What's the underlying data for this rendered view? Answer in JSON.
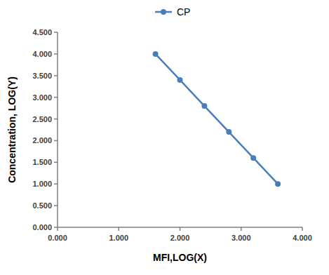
{
  "chart_data": {
    "type": "line",
    "x_label": "MFI,LOG(X)",
    "y_label": "Concentration,  LOG(Y)",
    "x": [
      1.6,
      2.0,
      2.4,
      2.8,
      3.2,
      3.6
    ],
    "series": [
      {
        "name": "CP",
        "color": "#4a7ebb",
        "marker": "circle",
        "line_style": "solid",
        "values": [
          4.0,
          3.4,
          2.8,
          2.2,
          1.6,
          1.0
        ]
      }
    ],
    "xlim": [
      0,
      4
    ],
    "xticks": [
      {
        "value": 0,
        "label": "0.000"
      },
      {
        "value": 1,
        "label": "1.000"
      },
      {
        "value": 2,
        "label": "2.000"
      },
      {
        "value": 3,
        "label": "3.000"
      },
      {
        "value": 4,
        "label": "4.000"
      }
    ],
    "ylim": [
      0,
      4.5
    ],
    "yticks": [
      {
        "value": 0,
        "label": "0.000"
      },
      {
        "value": 0.5,
        "label": "0.500"
      },
      {
        "value": 1,
        "label": "1.000"
      },
      {
        "value": 1.5,
        "label": "1.500"
      },
      {
        "value": 2,
        "label": "2.000"
      },
      {
        "value": 2.5,
        "label": "2.500"
      },
      {
        "value": 3,
        "label": "3.000"
      },
      {
        "value": 3.5,
        "label": "3.500"
      },
      {
        "value": 4,
        "label": "4.000"
      },
      {
        "value": 4.5,
        "label": "4.500"
      }
    ],
    "grid": false,
    "legend": "top"
  }
}
